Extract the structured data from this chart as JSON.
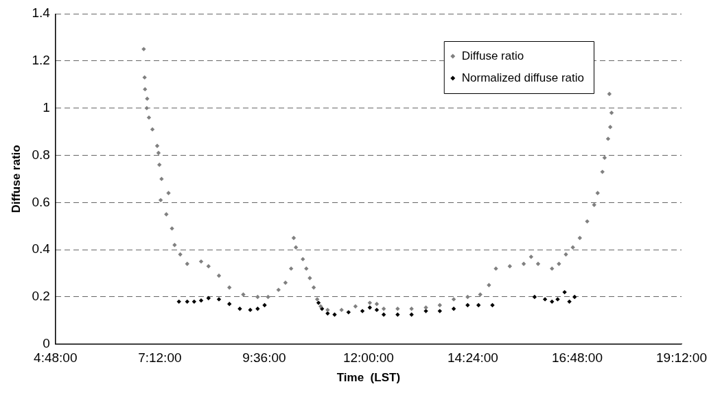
{
  "chart_data": {
    "type": "scatter",
    "xlabel": "Time  (LST)",
    "ylabel": "Diffuse ratio",
    "xlim": [
      4.8,
      19.2
    ],
    "xticks": [
      {
        "value": 4.8,
        "label": "4:48:00"
      },
      {
        "value": 7.2,
        "label": "7:12:00"
      },
      {
        "value": 9.6,
        "label": "9:36:00"
      },
      {
        "value": 12,
        "label": "12:00:00"
      },
      {
        "value": 14.4,
        "label": "14:24:00"
      },
      {
        "value": 16.8,
        "label": "16:48:00"
      },
      {
        "value": 19.2,
        "label": "19:12:00"
      }
    ],
    "ylim": [
      0,
      1.4
    ],
    "yticks": [
      0,
      0.2,
      0.4,
      0.6,
      0.8,
      1,
      1.2,
      1.4
    ],
    "grid": "y",
    "legend": "top right",
    "marker": "diamond",
    "series": [
      {
        "name": "Diffuse ratio",
        "color": "#808080",
        "x": [
          6.83,
          6.85,
          6.86,
          6.9,
          6.91,
          6.95,
          7.03,
          7.14,
          7.17,
          7.19,
          7.22,
          7.24,
          7.35,
          7.4,
          7.48,
          7.54,
          7.67,
          7.83,
          8.15,
          8.32,
          8.56,
          8.8,
          9.12,
          9.45,
          9.69,
          9.93,
          10.09,
          10.22,
          10.28,
          10.33,
          10.49,
          10.57,
          10.65,
          10.74,
          10.82,
          10.9,
          11.06,
          11.38,
          11.7,
          12.03,
          12.19,
          12.35,
          12.67,
          12.99,
          13.32,
          13.64,
          13.96,
          14.28,
          14.57,
          14.77,
          14.93,
          15.25,
          15.57,
          15.74,
          15.9,
          16.22,
          16.38,
          16.54,
          16.7,
          16.86,
          17.03,
          17.19,
          17.27,
          17.38,
          17.43,
          17.51,
          17.54,
          17.56,
          17.59
        ],
        "values": [
          1.25,
          1.13,
          1.08,
          1.0,
          1.04,
          0.96,
          0.91,
          0.84,
          0.81,
          0.76,
          0.61,
          0.7,
          0.55,
          0.64,
          0.49,
          0.42,
          0.38,
          0.34,
          0.35,
          0.33,
          0.29,
          0.24,
          0.21,
          0.2,
          0.2,
          0.23,
          0.26,
          0.32,
          0.45,
          0.41,
          0.36,
          0.32,
          0.28,
          0.24,
          0.19,
          0.16,
          0.145,
          0.145,
          0.16,
          0.175,
          0.17,
          0.15,
          0.15,
          0.15,
          0.155,
          0.165,
          0.19,
          0.2,
          0.21,
          0.25,
          0.32,
          0.33,
          0.34,
          0.37,
          0.34,
          0.32,
          0.34,
          0.38,
          0.41,
          0.45,
          0.52,
          0.59,
          0.64,
          0.73,
          0.79,
          0.87,
          1.06,
          0.92,
          0.98
        ]
      },
      {
        "name": "Normalized diffuse ratio",
        "color": "#000000",
        "x": [
          7.64,
          7.83,
          7.99,
          8.15,
          8.32,
          8.56,
          8.8,
          9.04,
          9.28,
          9.45,
          9.61,
          10.85,
          10.93,
          11.06,
          11.22,
          11.54,
          11.86,
          12.03,
          12.19,
          12.35,
          12.67,
          12.99,
          13.32,
          13.64,
          13.96,
          14.28,
          14.53,
          14.85,
          15.82,
          16.06,
          16.22,
          16.35,
          16.51,
          16.62,
          16.74
        ],
        "values": [
          0.18,
          0.18,
          0.18,
          0.185,
          0.195,
          0.19,
          0.17,
          0.15,
          0.145,
          0.15,
          0.165,
          0.175,
          0.15,
          0.13,
          0.125,
          0.135,
          0.14,
          0.155,
          0.145,
          0.125,
          0.125,
          0.125,
          0.14,
          0.14,
          0.15,
          0.165,
          0.165,
          0.165,
          0.2,
          0.19,
          0.18,
          0.19,
          0.22,
          0.18,
          0.2
        ]
      }
    ]
  }
}
